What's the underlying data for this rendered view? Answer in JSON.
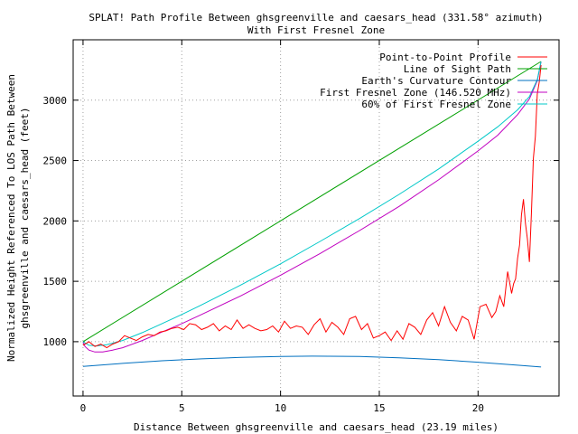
{
  "chart_data": {
    "type": "line",
    "title": "SPLAT! Path Profile Between ghsgreenville and caesars_head (331.58° azimuth)",
    "subtitle": "With First Fresnel Zone",
    "xlabel": "Distance Between ghsgreenville and caesars_head (23.19 miles)",
    "ylabel_line1": "Normalized Height Referenced To LOS Path Between",
    "ylabel_line2": "ghsgreenville and caesars_head (feet)",
    "xlim": [
      -0.5,
      24.1
    ],
    "ylim": [
      550,
      3500
    ],
    "xticks": [
      0,
      5,
      10,
      15,
      20
    ],
    "yticks": [
      1000,
      1500,
      2000,
      2500,
      3000
    ],
    "grid": true,
    "legend_position": "top-right",
    "series": [
      {
        "name": "Point-to-Point Profile",
        "color": "#ff0000",
        "x": [
          0,
          0.3,
          0.6,
          0.9,
          1.2,
          1.5,
          1.8,
          2.1,
          2.4,
          2.7,
          3.0,
          3.3,
          3.6,
          3.9,
          4.2,
          4.5,
          4.8,
          5.1,
          5.4,
          5.7,
          6.0,
          6.3,
          6.6,
          6.9,
          7.2,
          7.5,
          7.8,
          8.1,
          8.4,
          8.7,
          9.0,
          9.3,
          9.6,
          9.9,
          10.2,
          10.5,
          10.8,
          11.1,
          11.4,
          11.7,
          12.0,
          12.3,
          12.6,
          12.9,
          13.2,
          13.5,
          13.8,
          14.1,
          14.4,
          14.7,
          15.0,
          15.3,
          15.6,
          15.9,
          16.2,
          16.5,
          16.8,
          17.1,
          17.4,
          17.7,
          18.0,
          18.3,
          18.6,
          18.9,
          19.2,
          19.5,
          19.8,
          20.1,
          20.4,
          20.7,
          20.9,
          21.1,
          21.3,
          21.5,
          21.7,
          21.8,
          21.9,
          22.0,
          22.1,
          22.2,
          22.3,
          22.4,
          22.5,
          22.6,
          22.7,
          22.8,
          22.9,
          23.0,
          23.1,
          23.19
        ],
        "y": [
          970,
          1000,
          960,
          980,
          950,
          980,
          1000,
          1050,
          1030,
          1010,
          1040,
          1060,
          1050,
          1080,
          1090,
          1110,
          1120,
          1100,
          1150,
          1140,
          1100,
          1120,
          1150,
          1090,
          1130,
          1100,
          1180,
          1110,
          1140,
          1110,
          1090,
          1100,
          1130,
          1080,
          1170,
          1110,
          1130,
          1120,
          1060,
          1140,
          1190,
          1080,
          1160,
          1120,
          1060,
          1190,
          1210,
          1100,
          1150,
          1030,
          1050,
          1080,
          1010,
          1090,
          1020,
          1150,
          1120,
          1060,
          1180,
          1240,
          1130,
          1290,
          1160,
          1090,
          1210,
          1180,
          1020,
          1290,
          1310,
          1200,
          1250,
          1380,
          1290,
          1580,
          1400,
          1480,
          1520,
          1690,
          1800,
          2050,
          2180,
          1980,
          1850,
          1660,
          2060,
          2520,
          2700,
          3050,
          3150,
          3290
        ]
      },
      {
        "name": "Line of Sight Path",
        "color": "#00a000",
        "x": [
          0,
          23.19
        ],
        "y": [
          1000,
          3320
        ]
      },
      {
        "name": "Earth's Curvature Contour",
        "color": "#0070c0",
        "x": [
          0,
          2,
          4,
          6,
          8,
          10,
          11.6,
          14,
          16,
          18,
          20,
          22,
          23.19
        ],
        "y": [
          795,
          820,
          842,
          858,
          870,
          877,
          880,
          877,
          866,
          851,
          830,
          805,
          790
        ]
      },
      {
        "name": "First Fresnel Zone (146.520 MHz)",
        "color": "#c000c0",
        "x": [
          0,
          0.1,
          0.3,
          0.6,
          1.0,
          1.5,
          2.0,
          3,
          4,
          5,
          6,
          8,
          10,
          12,
          14,
          16,
          18,
          20,
          21,
          22,
          22.6,
          23.0,
          23.19
        ],
        "y": [
          1000,
          960,
          930,
          915,
          915,
          930,
          950,
          1010,
          1080,
          1150,
          1225,
          1380,
          1550,
          1730,
          1920,
          2120,
          2340,
          2580,
          2710,
          2880,
          3010,
          3160,
          3320
        ]
      },
      {
        "name": "60% of First Fresnel Zone",
        "color": "#00c8c8",
        "x": [
          0,
          0.3,
          0.7,
          1.2,
          2,
          3,
          4,
          5,
          6,
          8,
          10,
          12,
          14,
          16,
          18,
          20,
          21,
          22,
          22.6,
          23.0,
          23.19
        ],
        "y": [
          1000,
          970,
          965,
          975,
          1010,
          1075,
          1150,
          1225,
          1305,
          1470,
          1645,
          1830,
          2020,
          2220,
          2430,
          2660,
          2780,
          2920,
          3030,
          3170,
          3320
        ]
      }
    ]
  }
}
